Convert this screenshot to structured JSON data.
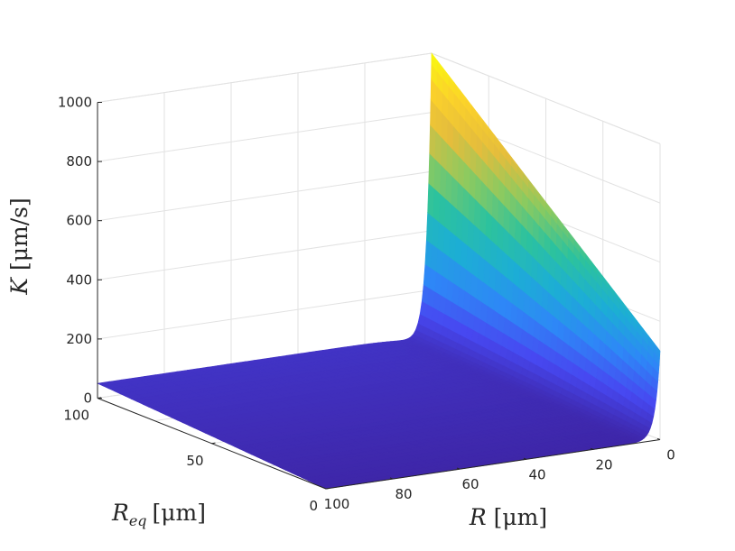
{
  "chart_data": {
    "type": "surface3d",
    "title": "",
    "formula_note": "",
    "xlabel": {
      "main": "R",
      "unit": "[μm]"
    },
    "ylabel": {
      "main": "R",
      "sub": "eq",
      "unit": "[μm]"
    },
    "zlabel": {
      "main": "K",
      "unit": "[μm/s]"
    },
    "x_ticks": [
      "0",
      "20",
      "40",
      "60",
      "80",
      "100"
    ],
    "y_ticks": [
      "0",
      "50",
      "100"
    ],
    "z_ticks": [
      "0",
      "200",
      "400",
      "600",
      "800",
      "1000"
    ],
    "xlim": [
      0,
      100
    ],
    "ylim": [
      0,
      100
    ],
    "zlim": [
      0,
      1000
    ],
    "grid": true,
    "colormap": "parula",
    "colormap_stops": [
      "#3e26a8",
      "#4748f1",
      "#2e87f7",
      "#1caed5",
      "#2cc29e",
      "#8bca60",
      "#e5bd3c",
      "#fbd12b",
      "#f9fb0e"
    ],
    "corner_values": [
      {
        "R": 0,
        "Req": 100,
        "K": 1000
      },
      {
        "R": 0,
        "Req": 0,
        "K": 300
      },
      {
        "R": 100,
        "Req": 0,
        "K": 0
      },
      {
        "R": 100,
        "Req": 100,
        "K": 50
      }
    ]
  }
}
